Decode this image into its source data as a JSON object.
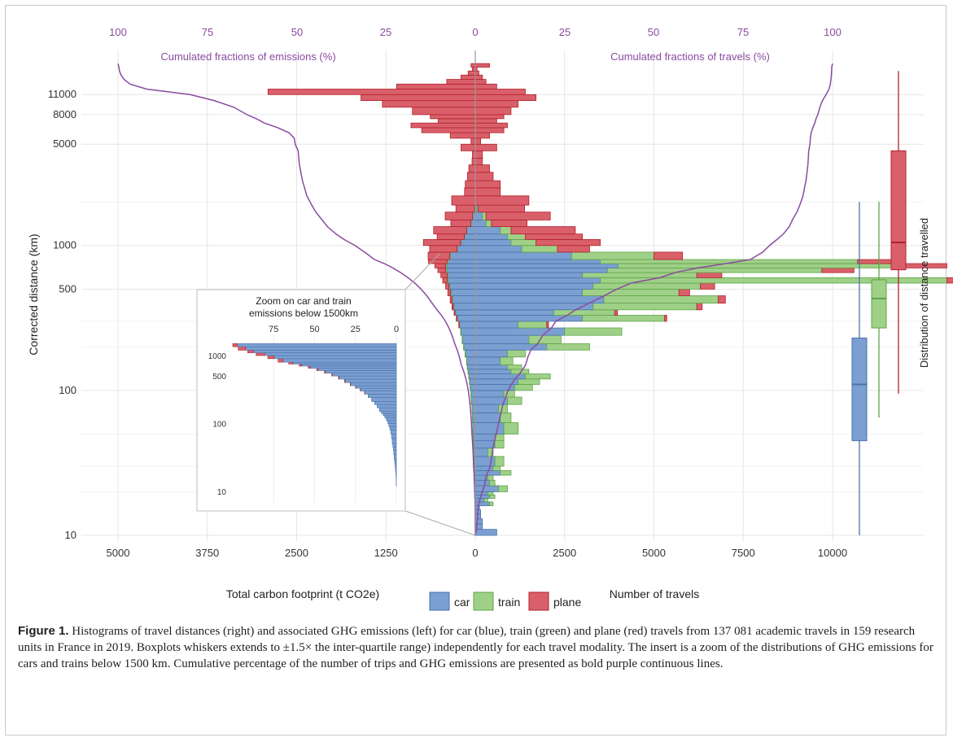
{
  "caption": {
    "label": "Figure 1.",
    "text": "Histograms of travel distances (right) and associated GHG emissions (left) for car (blue), train (green) and plane (red) travels from 137 081 academic travels in 159 research units in France in 2019. Boxplots whiskers extends to ±1.5× the inter-quartile range) independently for each travel modality. The insert is a zoom of the distributions of GHG emissions for cars and trains below 1500 km. Cumulative percentage of the number of trips and GHG emissions are presented as bold purple continuous lines."
  },
  "colors": {
    "car": "#7a9fd0",
    "car_edge": "#4a72ad",
    "train": "#9fd088",
    "train_edge": "#5ea446",
    "plane": "#d9606a",
    "plane_edge": "#b3202b",
    "cumulative": "#8a4aa0",
    "axis_text": "#333333",
    "grid": "#e6e6e6"
  },
  "chart_data": {
    "type": "bar",
    "orientation": "horizontal mirrored histogram",
    "title": "",
    "ylabel": "Corrected distance (km)",
    "y_scale": "log",
    "ylim": [
      10,
      20000
    ],
    "y_ticks": [
      10,
      100,
      500,
      1000,
      5000,
      8000,
      11000
    ],
    "left_xlabel": "Total carbon footprint (t CO2e)",
    "left_xlim": [
      0,
      5000
    ],
    "left_ticks": [
      0,
      1250,
      2500,
      3750,
      5000
    ],
    "right_xlabel": "Number of travels",
    "right_xlim": [
      0,
      10000
    ],
    "right_ticks": [
      0,
      2500,
      5000,
      7500,
      10000
    ],
    "top_left_label": "Cumulated fractions of emissions (%)",
    "top_right_label": "Cumulated fractions of travels (%)",
    "top_ticks": [
      "100",
      "75",
      "50",
      "25",
      "0",
      "25",
      "50",
      "75",
      "100"
    ],
    "legend": [
      {
        "key": "car",
        "label": "car"
      },
      {
        "key": "train",
        "label": "train"
      },
      {
        "key": "plane",
        "label": "plane"
      }
    ],
    "legend_position": "bottom",
    "bins_km": [
      10,
      11,
      12,
      13,
      14,
      15,
      16,
      17,
      18,
      19,
      20,
      22,
      24,
      26,
      28,
      30,
      35,
      40,
      45,
      50,
      60,
      70,
      80,
      90,
      100,
      110,
      120,
      130,
      140,
      150,
      170,
      190,
      210,
      240,
      270,
      300,
      330,
      360,
      400,
      450,
      500,
      550,
      600,
      650,
      700,
      750,
      800,
      900,
      1000,
      1100,
      1200,
      1350,
      1500,
      1700,
      1900,
      2200,
      2500,
      2800,
      3200,
      3600,
      4000,
      4500,
      5000,
      5500,
      6000,
      6500,
      7000,
      7500,
      8000,
      9000,
      10000,
      11000,
      12000,
      13000,
      14000,
      15000,
      16000,
      17000,
      18000
    ],
    "series": [
      {
        "name": "car",
        "travels": [
          600,
          200,
          200,
          150,
          150,
          120,
          400,
          250,
          400,
          350,
          650,
          400,
          350,
          700,
          500,
          550,
          350,
          550,
          550,
          800,
          700,
          650,
          900,
          800,
          1100,
          1200,
          1400,
          1000,
          900,
          700,
          900,
          2000,
          1500,
          2500,
          1200,
          3000,
          2200,
          3300,
          3600,
          3000,
          3300,
          3500,
          3000,
          3700,
          4000,
          3500,
          2700,
          1300,
          1000,
          900,
          700,
          300,
          200,
          50,
          0,
          0,
          0,
          0,
          0,
          0,
          0,
          0,
          0,
          0,
          0,
          0,
          0,
          0,
          0,
          0,
          0,
          0,
          0,
          0,
          0,
          0,
          0,
          0,
          0
        ],
        "emissions": [
          2,
          2,
          2,
          2,
          3,
          3,
          5,
          5,
          8,
          8,
          10,
          12,
          12,
          15,
          18,
          20,
          25,
          28,
          30,
          35,
          40,
          45,
          55,
          60,
          70,
          80,
          90,
          100,
          110,
          120,
          140,
          160,
          180,
          200,
          220,
          250,
          280,
          300,
          320,
          340,
          360,
          380,
          380,
          400,
          400,
          380,
          350,
          250,
          200,
          150,
          120,
          60,
          40,
          10,
          0,
          0,
          0,
          0,
          0,
          0,
          0,
          0,
          0,
          0,
          0,
          0,
          0,
          0,
          0,
          0,
          0,
          0,
          0,
          0,
          0,
          0,
          0,
          0,
          0
        ],
        "box": {
          "min": 10,
          "q1": 45,
          "median": 110,
          "q3": 230,
          "max": 2000
        }
      },
      {
        "name": "train",
        "travels": [
          0,
          0,
          0,
          0,
          0,
          0,
          100,
          100,
          150,
          150,
          250,
          150,
          150,
          300,
          200,
          250,
          150,
          250,
          250,
          400,
          300,
          250,
          400,
          300,
          500,
          600,
          700,
          500,
          400,
          350,
          500,
          1200,
          900,
          1600,
          800,
          2300,
          1700,
          2900,
          3200,
          2700,
          3000,
          9700,
          3200,
          6000,
          8000,
          7200,
          2300,
          1000,
          700,
          500,
          300,
          150,
          100,
          30,
          0,
          0,
          0,
          0,
          0,
          0,
          0,
          0,
          0,
          0,
          0,
          0,
          0,
          0,
          0,
          0,
          0,
          0,
          0,
          0,
          0,
          0,
          0,
          0,
          0
        ],
        "emissions": [
          0,
          0,
          0,
          0,
          0,
          0,
          0,
          0,
          1,
          1,
          1,
          1,
          1,
          1,
          1,
          1,
          1,
          1,
          2,
          2,
          2,
          2,
          2,
          2,
          3,
          3,
          3,
          3,
          3,
          3,
          4,
          5,
          5,
          6,
          5,
          7,
          6,
          8,
          9,
          9,
          10,
          15,
          12,
          14,
          16,
          15,
          10,
          8,
          6,
          4,
          3,
          2,
          1,
          1,
          0,
          0,
          0,
          0,
          0,
          0,
          0,
          0,
          0,
          0,
          0,
          0,
          0,
          0,
          0,
          0,
          0,
          0,
          0,
          0,
          0,
          0,
          0,
          0,
          0
        ],
        "box": {
          "min": 65,
          "q1": 270,
          "median": 430,
          "q3": 580,
          "max": 2000
        }
      },
      {
        "name": "plane",
        "travels": [
          0,
          0,
          0,
          0,
          0,
          0,
          0,
          0,
          0,
          0,
          0,
          0,
          0,
          0,
          0,
          0,
          0,
          0,
          0,
          0,
          0,
          0,
          0,
          0,
          0,
          0,
          0,
          0,
          0,
          0,
          0,
          0,
          0,
          0,
          50,
          60,
          80,
          150,
          200,
          300,
          400,
          500,
          700,
          900,
          1200,
          1000,
          800,
          900,
          1800,
          1600,
          1800,
          1000,
          1800,
          1300,
          1500,
          700,
          700,
          500,
          400,
          200,
          200,
          600,
          150,
          400,
          800,
          900,
          600,
          800,
          1000,
          1200,
          1700,
          1400,
          600,
          300,
          200,
          100,
          50,
          400,
          300
        ],
        "emissions": [
          0,
          0,
          0,
          0,
          0,
          0,
          0,
          0,
          0,
          0,
          0,
          0,
          0,
          0,
          0,
          0,
          0,
          0,
          0,
          0,
          0,
          0,
          0,
          0,
          0,
          0,
          0,
          0,
          0,
          0,
          0,
          0,
          0,
          0,
          6,
          8,
          10,
          18,
          22,
          35,
          45,
          60,
          90,
          110,
          150,
          260,
          300,
          380,
          520,
          380,
          460,
          280,
          380,
          260,
          330,
          150,
          140,
          110,
          90,
          45,
          40,
          200,
          60,
          350,
          750,
          900,
          520,
          630,
          880,
          1300,
          1600,
          2900,
          1100,
          400,
          200,
          100,
          40,
          60,
          60
        ],
        "box": {
          "min": 95,
          "q1": 680,
          "median": 1050,
          "q3": 4500,
          "max": 16000
        }
      }
    ],
    "box_title": "Distribution of distance travelled",
    "inset": {
      "title_line1": "Zoom on car and train",
      "title_line2": "emissions below 1500km",
      "x_ticks": [
        "75",
        "50",
        "25",
        "0"
      ],
      "y_ticks": [
        10,
        100,
        500,
        1000
      ],
      "xlim": [
        0,
        100
      ],
      "ylim": [
        8,
        1600
      ]
    }
  }
}
